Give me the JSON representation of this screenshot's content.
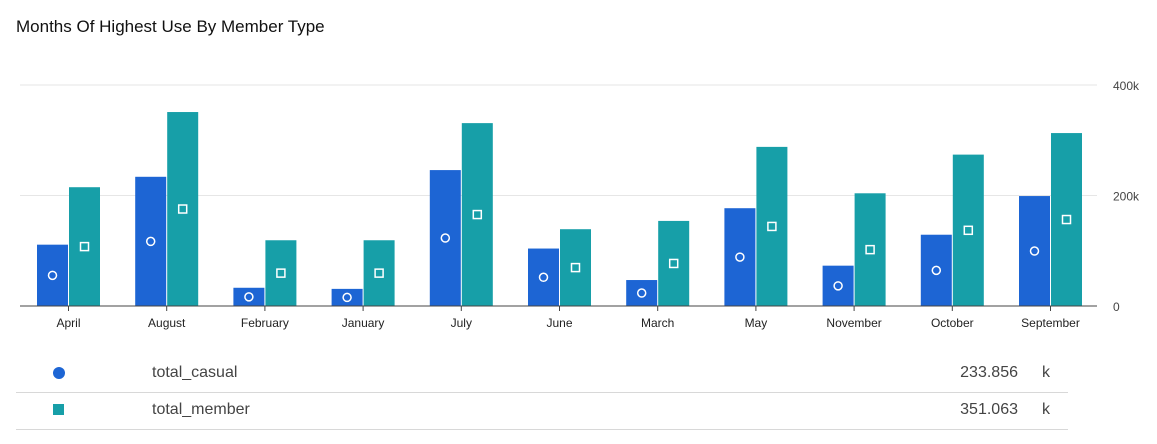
{
  "title": "Months Of Highest Use By Member Type",
  "colors": {
    "casual": "#1d65d4",
    "member": "#179fa8",
    "grid": "#e6e6e6",
    "axis": "#444444"
  },
  "chart_data": {
    "type": "bar",
    "title": "Months Of Highest Use By Member Type",
    "categories": [
      "April",
      "August",
      "February",
      "January",
      "July",
      "June",
      "March",
      "May",
      "November",
      "October",
      "September"
    ],
    "series": [
      {
        "name": "total_casual",
        "marker": "circle",
        "values": [
          111000,
          233856,
          33000,
          31000,
          246000,
          104000,
          47000,
          177000,
          73000,
          129000,
          199000
        ]
      },
      {
        "name": "total_member",
        "marker": "square",
        "values": [
          215000,
          351063,
          119000,
          119000,
          331000,
          139000,
          154000,
          288000,
          204000,
          274000,
          313000
        ]
      }
    ],
    "yaxis": {
      "position": "right",
      "ylim": [
        0,
        400000
      ],
      "ticks": [
        0,
        200000,
        400000
      ],
      "tick_labels": [
        "0",
        "200k",
        "400k"
      ]
    },
    "grid": true
  },
  "legend": [
    {
      "name": "total_casual",
      "value": "233.856",
      "unit": "k",
      "marker": "circle"
    },
    {
      "name": "total_member",
      "value": "351.063",
      "unit": "k",
      "marker": "square"
    }
  ]
}
